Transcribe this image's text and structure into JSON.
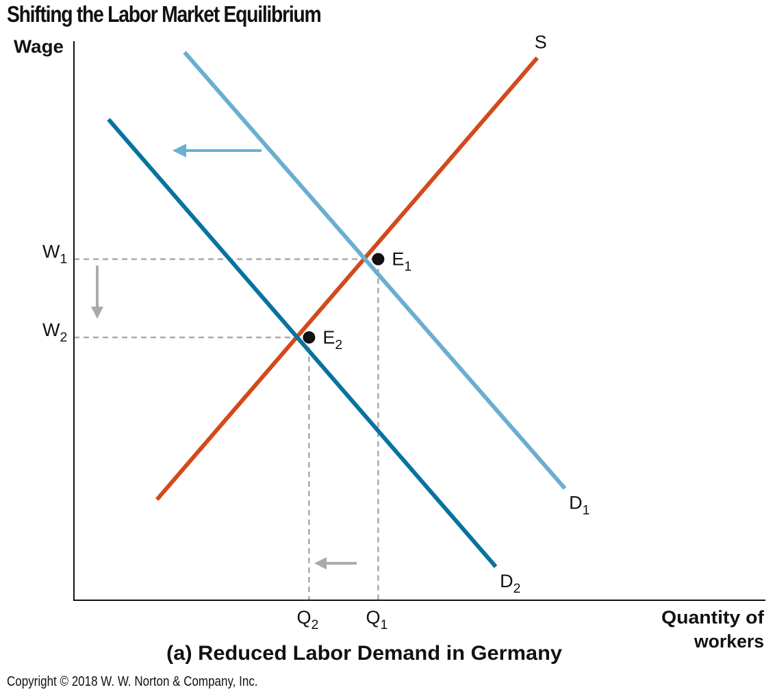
{
  "title": "Shifting the Labor Market Equilibrium",
  "copyright": "Copyright © 2018 W. W. Norton & Company, Inc.",
  "colors": {
    "supply": "#d24a1b",
    "demand_original": "#6aaed0",
    "demand_new": "#0872a0",
    "guides": "#aaaaaa",
    "points": "#111111"
  },
  "chart_data": {
    "type": "line",
    "title": "Shifting the Labor Market Equilibrium",
    "subtitle": "(a) Reduced Labor Demand in Germany",
    "ylabel": "Wage",
    "xlabel": "Quantity of workers",
    "xlabel_lines": [
      "Quantity of",
      "workers"
    ],
    "xlim": [
      0,
      10
    ],
    "ylim": [
      0,
      10
    ],
    "grid": false,
    "series": [
      {
        "name": "S",
        "key": "supply",
        "x": [
          1.2,
          6.7
        ],
        "y": [
          1.8,
          9.7
        ]
      },
      {
        "name": "D",
        "sub": "1",
        "key": "demand_original",
        "x": [
          1.6,
          7.1
        ],
        "y": [
          9.8,
          2.0
        ]
      },
      {
        "name": "D",
        "sub": "2",
        "key": "demand_new",
        "x": [
          0.5,
          6.1
        ],
        "y": [
          8.6,
          0.6
        ]
      }
    ],
    "points": [
      {
        "name": "E",
        "sub": "1",
        "x": 4.4,
        "y": 6.1
      },
      {
        "name": "E",
        "sub": "2",
        "x": 3.4,
        "y": 4.7
      }
    ],
    "x_ticks": [
      {
        "name": "Q",
        "sub": "2",
        "x": 3.4
      },
      {
        "name": "Q",
        "sub": "1",
        "x": 4.4
      }
    ],
    "y_ticks": [
      {
        "name": "W",
        "sub": "1",
        "y": 6.1
      },
      {
        "name": "W",
        "sub": "2",
        "y": 4.7
      }
    ]
  }
}
